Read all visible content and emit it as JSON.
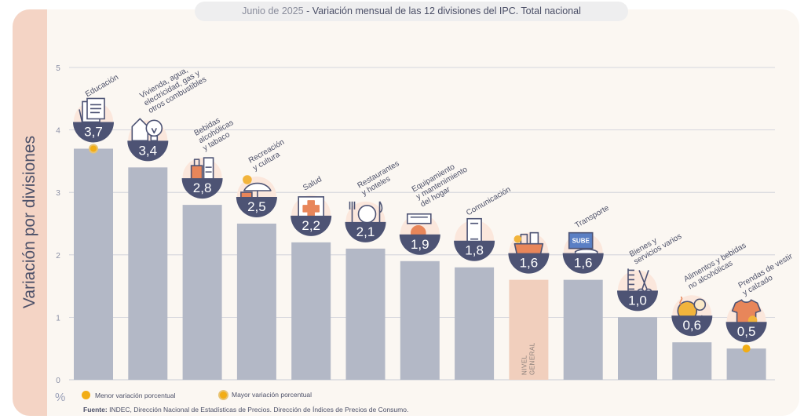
{
  "header": {
    "period": "Junio de 2025",
    "separator": "-",
    "title": "Variación mensual de las 12 divisiones del IPC. Total nacional"
  },
  "colors": {
    "bar": "#b3b8c6",
    "bar_general": "#f1cfbd",
    "badge": "#4d5374",
    "grid": "#c9ccd6",
    "text": "#4c5068",
    "dot_min": "#f2ad15",
    "dot_max_ring": "#e8c372"
  },
  "legend": {
    "min_label": "Menor variación porcentual",
    "max_label": "Mayor variación porcentual"
  },
  "source": {
    "label": "Fuente:",
    "text": "INDEC, Dirección Nacional de Estadísticas de Precios. Dirección de Índices de Precios de Consumo."
  },
  "chart_data": {
    "type": "bar",
    "ylabel": "Variación por divisiones",
    "unit": "%",
    "ylim": [
      0,
      5
    ],
    "yticks": [
      0,
      1,
      2,
      3,
      4,
      5
    ],
    "grid": true,
    "categories": [
      "Educación",
      "Vivienda, agua, electricidad, gas y otros combustibles",
      "Bebidas alcohólicas y tabaco",
      "Recreación y cultura",
      "Salud",
      "Restaurantes y hoteles",
      "Equipamiento y mantenimiento del hogar",
      "Comunicación",
      "NIVEL GENERAL",
      "Transporte",
      "Bienes y servicios varios",
      "Alimentos y bebidas no alcohólicas",
      "Prendas de vestir y calzado"
    ],
    "values": [
      3.7,
      3.4,
      2.8,
      2.5,
      2.2,
      2.1,
      1.9,
      1.8,
      1.6,
      1.6,
      1.0,
      0.6,
      0.5
    ],
    "value_labels": [
      "3,7",
      "3,4",
      "2,8",
      "2,5",
      "2,2",
      "2,1",
      "1,9",
      "1,8",
      "1,6",
      "1,6",
      "1,0",
      "0,6",
      "0,5"
    ],
    "label_lines": [
      [
        "Educación"
      ],
      [
        "Vivienda, agua,",
        "electricidad, gas y",
        "otros combustibles"
      ],
      [
        "Bebidas",
        "alcohólicas",
        "y tabaco"
      ],
      [
        "Recreación",
        "y cultura"
      ],
      [
        "Salud"
      ],
      [
        "Restaurantes",
        "y hoteles"
      ],
      [
        "Equipamiento",
        "y mantenimiento",
        "del hogar"
      ],
      [
        "Comunicación"
      ],
      [],
      [
        "Transporte"
      ],
      [
        "Bienes y",
        "servicios varios"
      ],
      [
        "Alimentos y bebidas",
        "no alcohólicas"
      ],
      [
        "Prendas de vestir",
        "y calzado"
      ]
    ],
    "general_bar_label": [
      "NIVEL",
      "GENERAL"
    ],
    "icons": [
      "books-icon",
      "house-bulb-icon",
      "bottles-icon",
      "umbrella-icon",
      "medical-cross-icon",
      "cutlery-icon",
      "furniture-icon",
      "phone-icon",
      "shopping-bag-icon",
      "transport-card-icon",
      "comb-scissors-icon",
      "chicken-icon",
      "shirt-icon"
    ],
    "transport_card_text": "SUBE",
    "highest_index": 0,
    "lowest_index": 12
  }
}
